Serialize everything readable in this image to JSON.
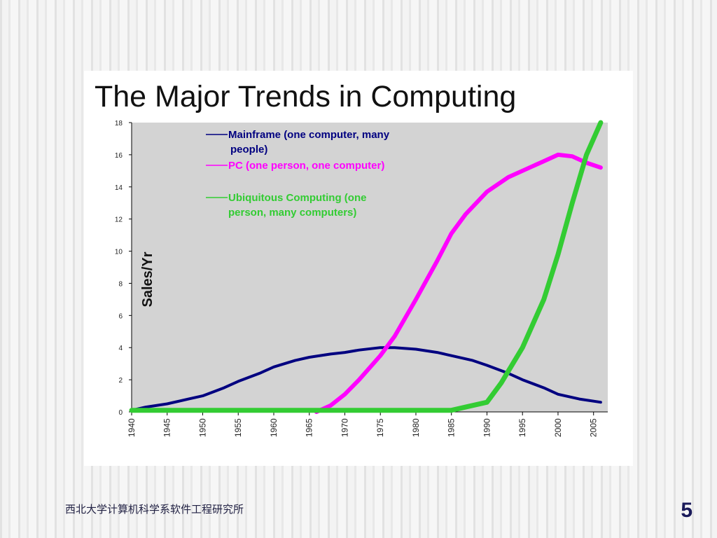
{
  "slide": {
    "footer_text": "西北大学计算机科学系软件工程研究所",
    "page_number": "5"
  },
  "chart_data": {
    "type": "line",
    "title": "The Major Trends in Computing",
    "ylabel": "Sales/Yr",
    "xlabel": "",
    "xlim": [
      1940,
      2007
    ],
    "ylim": [
      0,
      18
    ],
    "yticks": [
      0,
      2,
      4,
      6,
      8,
      10,
      12,
      14,
      16,
      18
    ],
    "xticks": [
      1940,
      1945,
      1950,
      1955,
      1960,
      1965,
      1970,
      1975,
      1980,
      1985,
      1990,
      1995,
      2000,
      2005
    ],
    "plot_background": "#d3d3d3",
    "grid": false,
    "legend_position": "top-left (inside plot)",
    "legend": [
      {
        "lines": [
          "Mainframe (one computer, many",
          "people)"
        ],
        "color": "#000080"
      },
      {
        "lines": [
          "PC (one person, one computer)"
        ],
        "color": "#ff00ff"
      },
      {
        "lines": [
          "Ubiquitous Computing (one",
          "person, many computers)"
        ],
        "color": "#33cc33"
      }
    ],
    "series": [
      {
        "name": "Mainframe (one computer, many people)",
        "color": "#000080",
        "x": [
          1940,
          1942,
          1945,
          1948,
          1950,
          1953,
          1955,
          1958,
          1960,
          1963,
          1965,
          1968,
          1970,
          1972,
          1975,
          1977,
          1980,
          1983,
          1985,
          1988,
          1990,
          1993,
          1995,
          1998,
          2000,
          2003,
          2006
        ],
        "y": [
          0.1,
          0.3,
          0.5,
          0.8,
          1.0,
          1.5,
          1.9,
          2.4,
          2.8,
          3.2,
          3.4,
          3.6,
          3.7,
          3.85,
          4.0,
          4.0,
          3.9,
          3.7,
          3.5,
          3.2,
          2.9,
          2.4,
          2.0,
          1.5,
          1.1,
          0.8,
          0.6
        ]
      },
      {
        "name": "PC (one person, one computer)",
        "color": "#ff00ff",
        "x": [
          1966,
          1968,
          1970,
          1972,
          1975,
          1977,
          1980,
          1983,
          1985,
          1987,
          1990,
          1993,
          1995,
          1998,
          2000,
          2002,
          2004,
          2006
        ],
        "y": [
          0.0,
          0.4,
          1.1,
          2.0,
          3.5,
          4.7,
          7.0,
          9.4,
          11.1,
          12.3,
          13.7,
          14.6,
          15.0,
          15.6,
          16.0,
          15.9,
          15.5,
          15.2
        ]
      },
      {
        "name": "Ubiquitous Computing (one person, many computers)",
        "color": "#33cc33",
        "x": [
          1940,
          1950,
          1960,
          1970,
          1980,
          1985,
          1987,
          1990,
          1992,
          1995,
          1998,
          2000,
          2002,
          2004,
          2006
        ],
        "y": [
          0.1,
          0.1,
          0.1,
          0.1,
          0.1,
          0.1,
          0.3,
          0.6,
          1.8,
          4.0,
          7.0,
          9.8,
          13.0,
          16.0,
          18.0
        ]
      }
    ]
  }
}
